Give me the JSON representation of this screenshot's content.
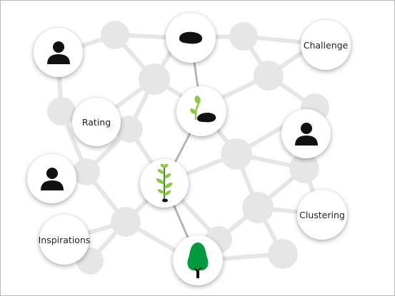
{
  "diagram": {
    "concept_labels": {
      "challenge": "Challenge",
      "rating": "Rating",
      "clustering": "Clustering",
      "inspirations": "Inspirations"
    },
    "growth_stages": [
      "seed-icon",
      "sprout-icon",
      "young-plant-icon",
      "tree-icon"
    ],
    "person_icons": [
      "person-icon",
      "person-icon",
      "person-icon"
    ],
    "colors": {
      "network": "#e6e6e6",
      "path": "#b5b5b5",
      "plant_green": "#8dc63f",
      "tree_green": "#009a3e",
      "icon_dark": "#111111"
    }
  }
}
